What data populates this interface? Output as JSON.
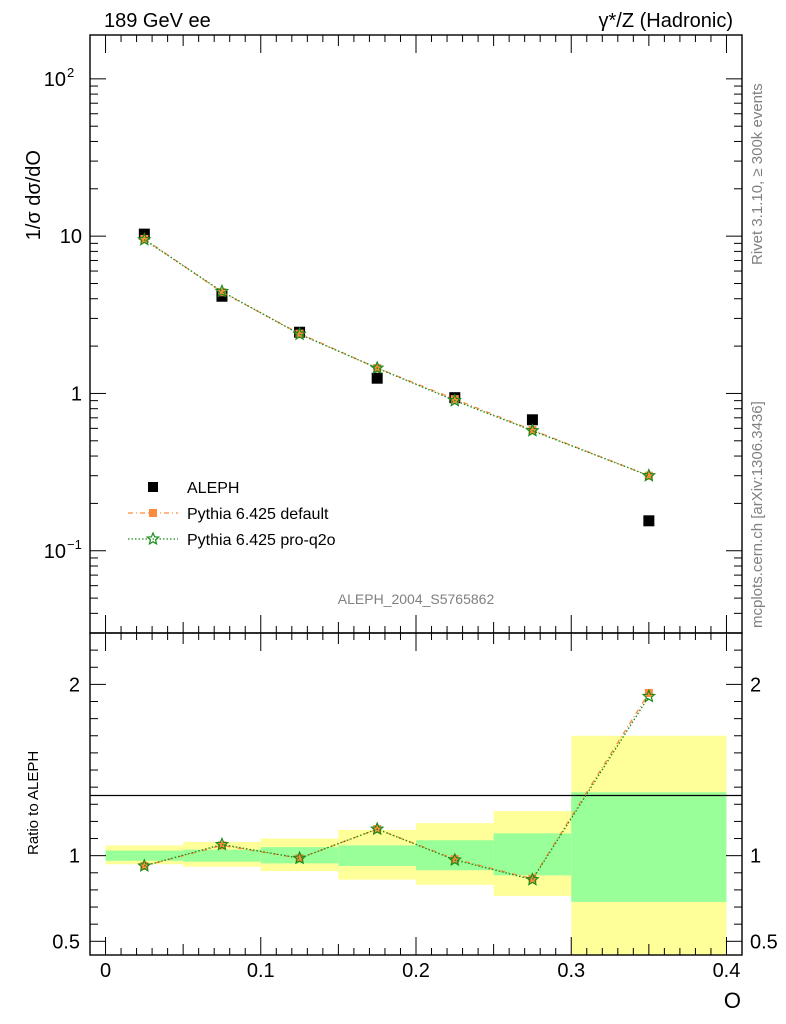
{
  "header": {
    "left": "189 GeV ee",
    "right": "γ*/Z (Hadronic)"
  },
  "side_labels": {
    "rivet": "Rivet 3.1.10, ≥ 300k events",
    "mcplots": "mcplots.cern.ch [arXiv:1306.3436]"
  },
  "analysis_id": "ALEPH_2004_S5765862",
  "colors": {
    "data": "#000000",
    "pythia_default": "#ff8c3c",
    "pythia_proq2o": "#1a8a1a",
    "band_inner": "#99ff99",
    "band_outer": "#ffff99"
  },
  "chart_data": [
    {
      "type": "scatter",
      "panel": "main",
      "ylabel": "1/σ dσ/dO",
      "yscale": "log",
      "ylim": [
        0.03,
        190
      ],
      "xlim": [
        -0.01,
        0.41
      ],
      "yticks": [
        {
          "value": 0.1,
          "label": "10",
          "sup": "−1"
        },
        {
          "value": 1,
          "label": "1",
          "sup": ""
        },
        {
          "value": 10,
          "label": "10",
          "sup": ""
        },
        {
          "value": 100,
          "label": "10",
          "sup": "2"
        }
      ],
      "legend_position": "lower-left",
      "series": [
        {
          "name": "ALEPH",
          "marker": "square",
          "x": [
            0.025,
            0.075,
            0.125,
            0.175,
            0.225,
            0.275,
            0.35
          ],
          "y": [
            10.3,
            4.15,
            2.45,
            1.25,
            0.94,
            0.68,
            0.155
          ]
        },
        {
          "name": "Pythia 6.425 default",
          "marker": "square-line",
          "x": [
            0.025,
            0.075,
            0.125,
            0.175,
            0.225,
            0.275,
            0.35
          ],
          "y": [
            9.6,
            4.4,
            2.4,
            1.45,
            0.92,
            0.585,
            0.3
          ]
        },
        {
          "name": "Pythia 6.425 pro-q2o",
          "marker": "star-line",
          "x": [
            0.025,
            0.075,
            0.125,
            0.175,
            0.225,
            0.275,
            0.35
          ],
          "y": [
            9.5,
            4.45,
            2.38,
            1.45,
            0.9,
            0.58,
            0.3
          ]
        }
      ]
    },
    {
      "type": "line",
      "panel": "ratio",
      "ylabel": "Ratio to ALEPH",
      "xlabel": "O",
      "ylim": [
        0.42,
        2.3
      ],
      "xlim": [
        -0.01,
        0.41
      ],
      "xticks": [
        {
          "value": 0,
          "label": "0"
        },
        {
          "value": 0.1,
          "label": "0.1"
        },
        {
          "value": 0.2,
          "label": "0.2"
        },
        {
          "value": 0.3,
          "label": "0.3"
        },
        {
          "value": 0.4,
          "label": "0.4"
        }
      ],
      "yticks": [
        {
          "value": 0.5,
          "label": "0.5"
        },
        {
          "value": 1,
          "label": "1"
        },
        {
          "value": 2,
          "label": "2"
        }
      ],
      "bands": [
        {
          "x0": 0.0,
          "x1": 0.05,
          "inner": [
            0.97,
            1.03
          ],
          "outer": [
            0.95,
            1.06
          ]
        },
        {
          "x0": 0.05,
          "x1": 0.1,
          "inner": [
            0.965,
            1.035
          ],
          "outer": [
            0.935,
            1.08
          ]
        },
        {
          "x0": 0.1,
          "x1": 0.15,
          "inner": [
            0.955,
            1.05
          ],
          "outer": [
            0.91,
            1.1
          ]
        },
        {
          "x0": 0.15,
          "x1": 0.2,
          "inner": [
            0.94,
            1.06
          ],
          "outer": [
            0.86,
            1.15
          ]
        },
        {
          "x0": 0.2,
          "x1": 0.25,
          "inner": [
            0.915,
            1.09
          ],
          "outer": [
            0.83,
            1.19
          ]
        },
        {
          "x0": 0.25,
          "x1": 0.3,
          "inner": [
            0.885,
            1.13
          ],
          "outer": [
            0.765,
            1.26
          ]
        },
        {
          "x0": 0.3,
          "x1": 0.4,
          "inner": [
            0.73,
            1.37
          ],
          "outer": [
            0.42,
            1.7
          ]
        }
      ],
      "series": [
        {
          "name": "Pythia 6.425 default",
          "marker": "square-line",
          "x": [
            0.025,
            0.075,
            0.125,
            0.175,
            0.225,
            0.275,
            0.35
          ],
          "y": [
            0.94,
            1.06,
            0.985,
            1.155,
            0.98,
            0.865,
            1.95
          ]
        },
        {
          "name": "Pythia 6.425 pro-q2o",
          "marker": "star-line",
          "x": [
            0.025,
            0.075,
            0.125,
            0.175,
            0.225,
            0.275,
            0.35
          ],
          "y": [
            0.94,
            1.065,
            0.985,
            1.155,
            0.975,
            0.86,
            1.93
          ]
        }
      ]
    }
  ]
}
